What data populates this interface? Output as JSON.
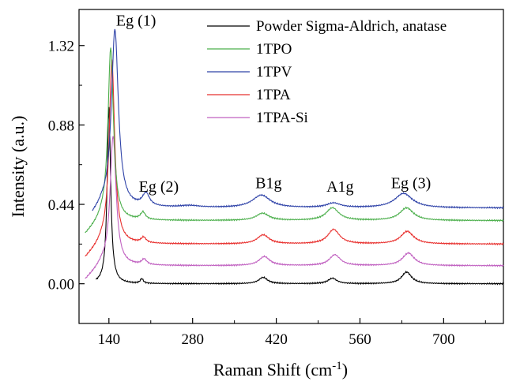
{
  "chart_data": {
    "type": "line",
    "title": "",
    "xlabel": "Raman Shift (cm",
    "xlabel_sup": "-1",
    "xlabel_close": ")",
    "ylabel": "Intensity (a.u.)",
    "xlim": [
      90,
      800
    ],
    "ylim": [
      -0.22,
      1.52
    ],
    "x_ticks": [
      140,
      280,
      420,
      560,
      700
    ],
    "y_ticks": [
      0.0,
      0.44,
      0.88,
      1.32
    ],
    "x_tick_labels": [
      "140",
      "280",
      "420",
      "560",
      "700"
    ],
    "y_tick_labels": [
      "0.00",
      "0.44",
      "0.88",
      "1.32"
    ],
    "grid": false,
    "legend": "top-right",
    "series": [
      {
        "name": "Powder Sigma-Aldrich, anatase",
        "color": "#000000",
        "offset": 0.0,
        "baseline": 0.0,
        "peaks": [
          {
            "x": 140,
            "h": 0.98,
            "w": 3.5
          },
          {
            "x": 195,
            "h": 0.025,
            "w": 3
          },
          {
            "x": 398,
            "h": 0.035,
            "w": 9
          },
          {
            "x": 514,
            "h": 0.03,
            "w": 9
          },
          {
            "x": 638,
            "h": 0.065,
            "w": 10
          }
        ],
        "start_x": 118
      },
      {
        "name": "1TPO",
        "color": "#4caf4c",
        "offset": 0.35,
        "baseline": 0.35,
        "peaks": [
          {
            "x": 143,
            "h": 0.96,
            "w": 5.5
          },
          {
            "x": 197,
            "h": 0.04,
            "w": 5
          },
          {
            "x": 397,
            "h": 0.04,
            "w": 13
          },
          {
            "x": 514,
            "h": 0.07,
            "w": 13
          },
          {
            "x": 638,
            "h": 0.07,
            "w": 14
          }
        ],
        "start_x": 100
      },
      {
        "name": "1TPV",
        "color": "#2f43a8",
        "offset": 0.42,
        "baseline": 0.42,
        "peaks": [
          {
            "x": 150,
            "h": 0.99,
            "w": 7
          },
          {
            "x": 202,
            "h": 0.07,
            "w": 7
          },
          {
            "x": 275,
            "h": 0.01,
            "w": 20
          },
          {
            "x": 395,
            "h": 0.07,
            "w": 18
          },
          {
            "x": 516,
            "h": 0.025,
            "w": 14
          },
          {
            "x": 633,
            "h": 0.08,
            "w": 18
          }
        ],
        "start_x": 112
      },
      {
        "name": "1TPA",
        "color": "#e8302e",
        "offset": 0.22,
        "baseline": 0.22,
        "peaks": [
          {
            "x": 145,
            "h": 1.02,
            "w": 5.5
          },
          {
            "x": 198,
            "h": 0.03,
            "w": 5
          },
          {
            "x": 398,
            "h": 0.05,
            "w": 12
          },
          {
            "x": 516,
            "h": 0.08,
            "w": 12
          },
          {
            "x": 639,
            "h": 0.07,
            "w": 13
          }
        ],
        "start_x": 100
      },
      {
        "name": "1TPA-Si",
        "color": "#c060c0",
        "offset": 0.1,
        "baseline": 0.1,
        "peaks": [
          {
            "x": 147,
            "h": 0.72,
            "w": 6
          },
          {
            "x": 199,
            "h": 0.03,
            "w": 5
          },
          {
            "x": 400,
            "h": 0.05,
            "w": 11
          },
          {
            "x": 518,
            "h": 0.06,
            "w": 11
          },
          {
            "x": 641,
            "h": 0.07,
            "w": 12
          }
        ],
        "start_x": 100
      }
    ],
    "annotations": [
      {
        "text": "Eg (1)",
        "x": 152,
        "y": 1.43
      },
      {
        "text": "Eg (2)",
        "x": 190,
        "y": 0.51
      },
      {
        "text": "B1g",
        "x": 385,
        "y": 0.53
      },
      {
        "text": "A1g",
        "x": 504,
        "y": 0.51
      },
      {
        "text": "Eg (3)",
        "x": 612,
        "y": 0.53
      }
    ]
  }
}
